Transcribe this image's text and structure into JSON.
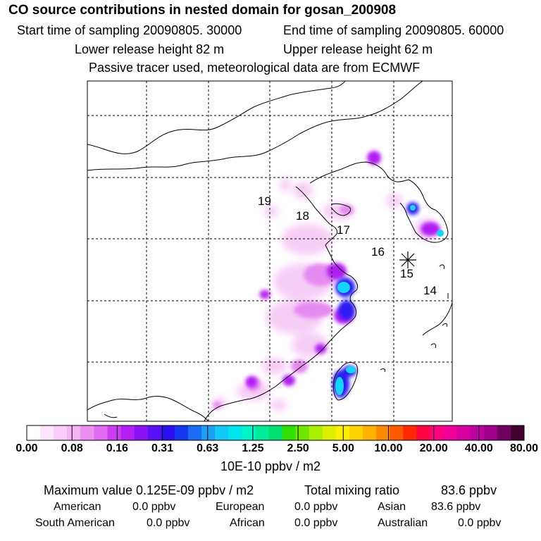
{
  "header": {
    "title": "CO  source contributions in nested domain for gosan_200908",
    "start_time": "Start time of sampling 20090805. 30000",
    "end_time": "End time of sampling 20090805. 60000",
    "lower_height": "Lower release height   82 m",
    "upper_height": "Upper release height   62 m",
    "tracer_note": "Passive tracer used, meteorological data are from ECMWF"
  },
  "map": {
    "trajectory_labels": [
      "19",
      "18",
      "17",
      "16",
      "15",
      "14"
    ],
    "receptor_marker": "receptor-star"
  },
  "colorbar": {
    "ticks": [
      "0.00",
      "0.08",
      "0.16",
      "0.31",
      "0.63",
      "1.25",
      "2.50",
      "5.00",
      "10.00",
      "20.00",
      "40.00",
      "80.00"
    ],
    "units": "10E-10 ppbv / m2",
    "colors": [
      "#ffffff",
      "#fde6fd",
      "#f9ccf9",
      "#f3b3f5",
      "#eb8ff1",
      "#df6cf1",
      "#cc3df3",
      "#b31ef5",
      "#8c10f6",
      "#5a10f6",
      "#2a10f3",
      "#1438f0",
      "#1a6cf5",
      "#1aa0f5",
      "#12c8f8",
      "#00e6f0",
      "#00f5c8",
      "#00ec9a",
      "#00e070",
      "#30e000",
      "#70e800",
      "#a8f000",
      "#dcf000",
      "#fff000",
      "#ffd400",
      "#ffb000",
      "#ff8a00",
      "#ff5a00",
      "#ff2800",
      "#ff0040",
      "#ff0080",
      "#f00098",
      "#d800a0",
      "#c000a0",
      "#a0008c",
      "#700060",
      "#400030"
    ]
  },
  "summary": {
    "max_label": "Maximum value  0.125E-09 ppbv / m2",
    "total_label": "Total mixing ratio",
    "total_value": "83.6 ppbv",
    "american_label": "American",
    "american_value": "0.0 ppbv",
    "european_label": "European",
    "european_value": "0.0 ppbv",
    "asian_label": "Asian",
    "asian_value": "83.6 ppbv",
    "southam_label": "South American",
    "southam_value": "0.0 ppbv",
    "african_label": "African",
    "african_value": "0.0 ppbv",
    "australian_label": "Australian",
    "australian_value": "0.0 ppbv"
  }
}
